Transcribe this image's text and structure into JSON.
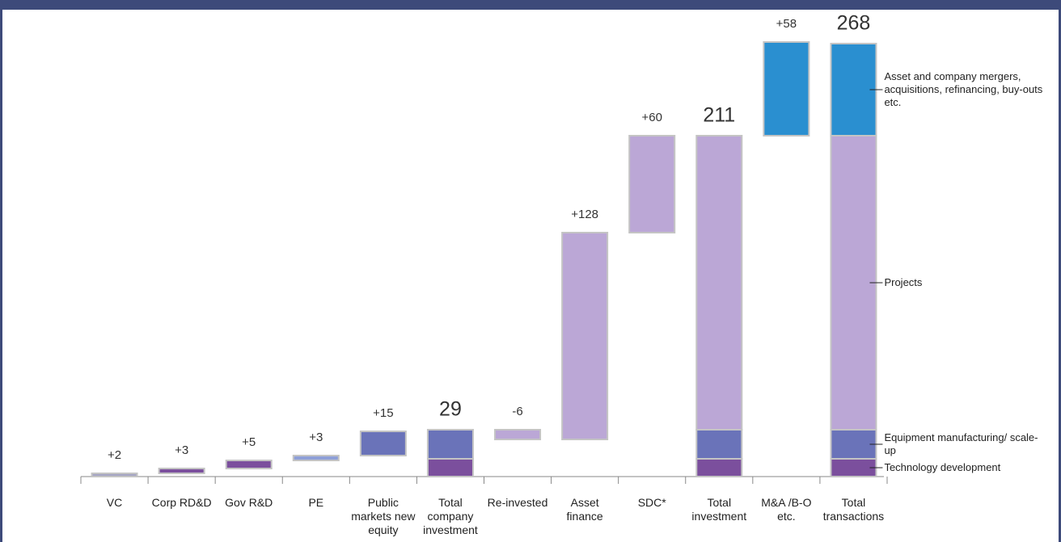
{
  "chart_data": {
    "type": "waterfall",
    "categories": [
      "VC",
      "Corp RD&D",
      "Gov R&D",
      "PE",
      "Public markets new equity",
      "Total company investment",
      "Re-invested",
      "Asset finance",
      "SDC*",
      "Total investment",
      "M&A /B-O etc.",
      "Total transactions"
    ],
    "values": [
      2,
      3,
      5,
      3,
      15,
      29,
      -6,
      128,
      60,
      211,
      58,
      268
    ],
    "value_labels": [
      "+2",
      "+3",
      "+5",
      "+3",
      "+15",
      "29",
      "-6",
      "+128",
      "+60",
      "211",
      "+58",
      "268"
    ],
    "is_total": [
      false,
      false,
      false,
      false,
      false,
      true,
      false,
      false,
      false,
      true,
      false,
      true
    ],
    "colors": [
      "#a3a3c2",
      "#7b4f9d",
      "#7b4f9d",
      "#8e9fd8",
      "#6a73b9",
      null,
      "#bba7d6",
      "#bba7d6",
      "#bba7d6",
      null,
      "#2a8fd0",
      null
    ],
    "segments": [
      {
        "name": "Technology development",
        "color": "#7b4f9d",
        "values": [
          null,
          null,
          null,
          null,
          null,
          11,
          null,
          null,
          null,
          11,
          null,
          11
        ]
      },
      {
        "name": "Equipment manufacturing/ scale-up",
        "color": "#6a73b9",
        "values": [
          null,
          null,
          null,
          null,
          null,
          18,
          null,
          null,
          null,
          18,
          null,
          18
        ]
      },
      {
        "name": "Projects",
        "color": "#bba7d6",
        "values": [
          null,
          null,
          null,
          null,
          null,
          null,
          null,
          null,
          null,
          182,
          null,
          182
        ]
      },
      {
        "name": "Asset and company mergers, acquisitions, refinancing, buy-outs etc.",
        "color": "#2a8fd0",
        "values": [
          null,
          null,
          null,
          null,
          null,
          null,
          null,
          null,
          null,
          null,
          null,
          57
        ]
      }
    ],
    "ylim": [
      0,
      268
    ]
  }
}
